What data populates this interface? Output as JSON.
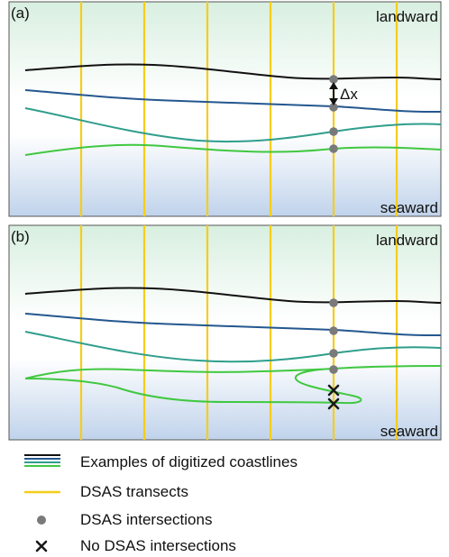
{
  "panels": [
    {
      "label": "(a)",
      "landward_label": "landward",
      "seaward_label": "seaward",
      "delta_label": "Δx"
    },
    {
      "label": "(b)",
      "landward_label": "landward",
      "seaward_label": "seaward"
    }
  ],
  "legend": {
    "coastlines": "Examples of digitized coastlines",
    "transects": "DSAS transects",
    "intersections": "DSAS intersections",
    "no_intersections": "No DSAS intersections"
  },
  "colors": {
    "land_gradient_top": "#d9efe2",
    "sea_gradient_bottom": "#c3d5ec",
    "coastline_1": "#111111",
    "coastline_2": "#24578f",
    "coastline_3": "#2f9e8c",
    "coastline_4": "#40c840",
    "transect": "#f5cd1a",
    "intersection": "#7a7a7a",
    "no_intersection_mark": "#1a1a1a",
    "panel_border": "#555555"
  }
}
